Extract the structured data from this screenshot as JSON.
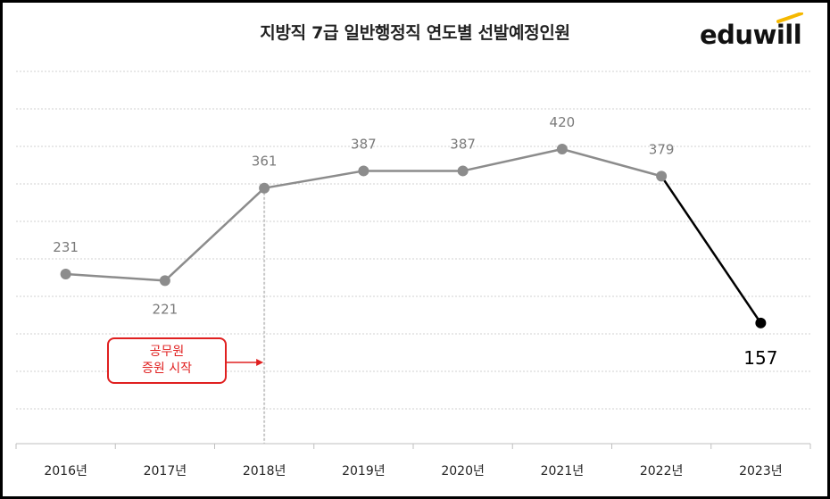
{
  "chart_data": {
    "type": "line",
    "title": "지방직 7급 일반행정직 연도별 선발예정인원",
    "categories": [
      "2016년",
      "2017년",
      "2018년",
      "2019년",
      "2020년",
      "2021년",
      "2022년",
      "2023년"
    ],
    "series": [
      {
        "values": [
          231,
          221,
          361,
          387,
          387,
          420,
          379,
          157
        ]
      }
    ],
    "value_labels": [
      "231",
      "221",
      "361",
      "387",
      "387",
      "420",
      "379",
      "157"
    ],
    "highlight_last_segment": true,
    "grid": "horizontal-dotted",
    "legend": "none",
    "annotation": {
      "line1": "공무원",
      "line2": "증원 시작",
      "category": "2018년"
    },
    "colors": {
      "main_line": "#8c8c8c",
      "highlight_line": "#000000",
      "grid": "#d0d0d0",
      "annotation": "#e02020"
    }
  },
  "brand": {
    "logo_text": "eduwill",
    "accent": "#f5b800"
  }
}
